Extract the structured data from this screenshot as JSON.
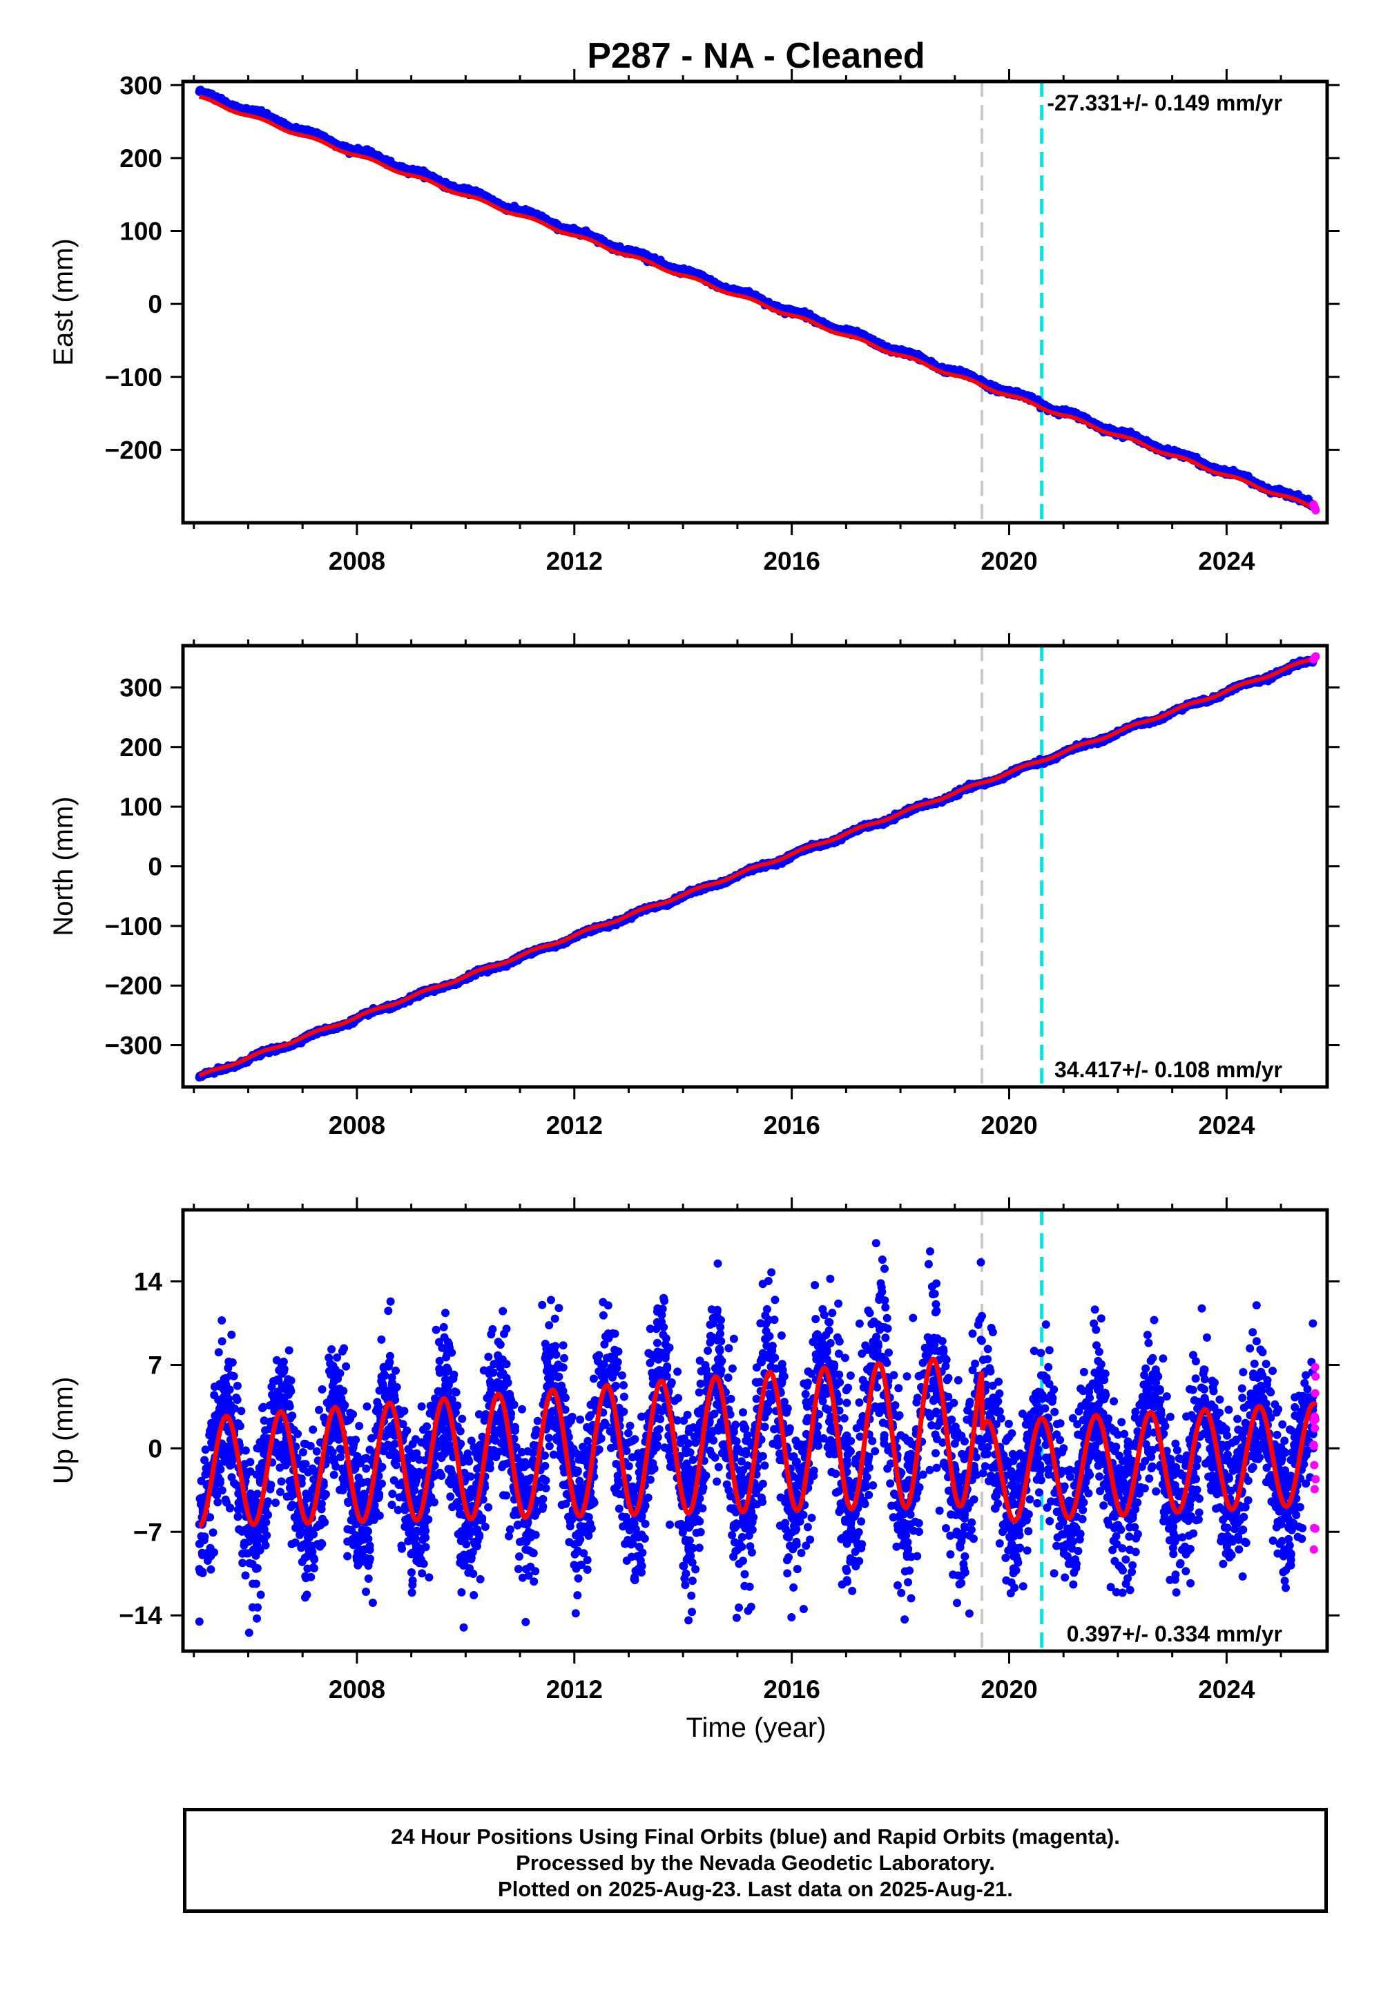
{
  "title": "P287  - NA - Cleaned",
  "xlabel": "Time (year)",
  "footer": {
    "line1": "24 Hour Positions Using Final Orbits (blue) and Rapid Orbits (magenta).",
    "line2": "Processed by the Nevada Geodetic Laboratory.",
    "line3": "Plotted on 2025-Aug-23. Last data on 2025-Aug-21."
  },
  "colors": {
    "final_orbits": "#0000ff",
    "rapid_orbits": "#ff00ff",
    "model_fit": "#ff0000",
    "event_gray": "#c8c8c8",
    "event_cyan": "#00e5e5"
  },
  "chart_data": [
    {
      "type": "scatter",
      "panel": "east",
      "ylabel": "East (mm)",
      "xlim": [
        2004.8,
        2025.85
      ],
      "ylim": [
        -300,
        305
      ],
      "xticks": [
        2008,
        2012,
        2016,
        2020,
        2024
      ],
      "yticks": [
        -200,
        -100,
        0,
        100,
        200,
        300
      ],
      "rate_label": "-27.331+/- 0.149 mm/yr",
      "rate_label_position": "top-right",
      "vertical_lines": [
        {
          "x": 2019.5,
          "color": "gray",
          "style": "dashed"
        },
        {
          "x": 2020.6,
          "color": "cyan",
          "style": "dashed"
        }
      ],
      "series": [
        {
          "name": "Final Orbits",
          "color": "blue",
          "x_start": 2005.1,
          "x_end": 2025.6,
          "y_start": 290,
          "y_end": -275
        },
        {
          "name": "Rapid Orbits",
          "color": "magenta",
          "x_start": 2025.6,
          "x_end": 2025.64,
          "y_start": -275,
          "y_end": -283
        },
        {
          "name": "Model Fit",
          "color": "red",
          "x_start": 2005.1,
          "x_end": 2025.64,
          "y_start": 283,
          "y_end": -280
        }
      ]
    },
    {
      "type": "scatter",
      "panel": "north",
      "ylabel": "North (mm)",
      "xlim": [
        2004.8,
        2025.85
      ],
      "ylim": [
        -370,
        370
      ],
      "xticks": [
        2008,
        2012,
        2016,
        2020,
        2024
      ],
      "yticks": [
        -300,
        -200,
        -100,
        0,
        100,
        200,
        300
      ],
      "rate_label": "34.417+/- 0.108 mm/yr",
      "rate_label_position": "bottom-right",
      "vertical_lines": [
        {
          "x": 2019.5,
          "color": "gray",
          "style": "dashed"
        },
        {
          "x": 2020.6,
          "color": "cyan",
          "style": "dashed"
        }
      ],
      "series": [
        {
          "name": "Final Orbits",
          "color": "blue",
          "x_start": 2005.1,
          "x_end": 2025.6,
          "y_start": -355,
          "y_end": 347
        },
        {
          "name": "Rapid Orbits",
          "color": "magenta",
          "x_start": 2025.6,
          "x_end": 2025.64,
          "y_start": 347,
          "y_end": 352
        },
        {
          "name": "Model Fit",
          "color": "red",
          "x_start": 2005.1,
          "x_end": 2025.64,
          "y_start": -352,
          "y_end": 350
        }
      ]
    },
    {
      "type": "scatter",
      "panel": "up",
      "ylabel": "Up (mm)",
      "xlim": [
        2004.8,
        2025.85
      ],
      "ylim": [
        -17,
        20
      ],
      "xticks": [
        2008,
        2012,
        2016,
        2020,
        2024
      ],
      "yticks": [
        -14,
        -7,
        0,
        7,
        14
      ],
      "rate_label": "0.397+/- 0.334 mm/yr",
      "rate_label_position": "bottom-right",
      "vertical_lines": [
        {
          "x": 2019.5,
          "color": "gray",
          "style": "dashed"
        },
        {
          "x": 2020.6,
          "color": "cyan",
          "style": "dashed"
        }
      ],
      "series": [
        {
          "name": "Final Orbits",
          "color": "blue",
          "x_start": 2005.1,
          "x_end": 2025.6,
          "seasonal_amplitude": 5,
          "scatter_sd": 3.2
        },
        {
          "name": "Rapid Orbits",
          "color": "magenta",
          "x_start": 2025.6,
          "x_end": 2025.64,
          "y_range": [
            -9,
            7.5
          ]
        },
        {
          "name": "Model Fit",
          "color": "red",
          "x_start": 2005.1,
          "x_end": 2025.64,
          "seasonal_amplitude": 5
        },
        {
          "name": "Model Fit Offset",
          "color": "red",
          "segments": [
            {
              "x_start": 2005.1,
              "x_end": 2019.5,
              "y_start": -2,
              "y_end": 1.5
            },
            {
              "x_start": 2019.5,
              "x_end": 2025.64,
              "y_start": -2,
              "y_end": -0.5
            }
          ]
        }
      ]
    }
  ]
}
